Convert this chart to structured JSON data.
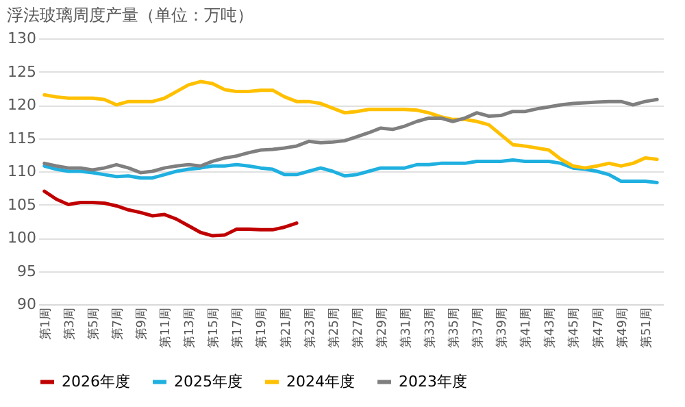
{
  "chart_data": {
    "type": "line",
    "title": "浮法玻璃周度产量（单位：万吨）",
    "categories": [
      "第1周",
      null,
      "第3周",
      null,
      "第5周",
      null,
      "第7周",
      null,
      "第9周",
      null,
      "第11周",
      null,
      "第13周",
      null,
      "第15周",
      null,
      "第17周",
      null,
      "第19周",
      null,
      "第21周",
      null,
      "第23周",
      null,
      "第25周",
      null,
      "第27周",
      null,
      "第29周",
      null,
      "第31周",
      null,
      "第33周",
      null,
      "第35周",
      null,
      "第37周",
      null,
      "第39周",
      null,
      "第41周",
      null,
      "第43周",
      null,
      "第45周",
      null,
      "第47周",
      null,
      "第49周",
      null,
      "第51周",
      null
    ],
    "series": [
      {
        "name": "2026年度",
        "color": "#c00000",
        "values": [
          107,
          105.8,
          105,
          105.3,
          105.3,
          105.2,
          104.8,
          104.2,
          103.8,
          103.3,
          103.5,
          102.8,
          101.8,
          100.8,
          100.3,
          100.4,
          101.3,
          101.3,
          101.2,
          101.2,
          101.6,
          102.2,
          null,
          null,
          null,
          null,
          null,
          null,
          null,
          null,
          null,
          null,
          null,
          null,
          null,
          null,
          null,
          null,
          null,
          null,
          null,
          null,
          null,
          null,
          null,
          null,
          null,
          null,
          null,
          null,
          null,
          null
        ]
      },
      {
        "name": "2025年度",
        "color": "#1fb0e0",
        "values": [
          110.8,
          110.3,
          110,
          110,
          109.8,
          109.5,
          109.2,
          109.3,
          109,
          109,
          109.5,
          110,
          110.3,
          110.5,
          110.8,
          110.8,
          111,
          110.8,
          110.5,
          110.3,
          109.5,
          109.5,
          110,
          110.5,
          110,
          109.3,
          109.5,
          110,
          110.5,
          110.5,
          110.5,
          111,
          111,
          111.2,
          111.2,
          111.2,
          111.5,
          111.5,
          111.5,
          111.7,
          111.5,
          111.5,
          111.5,
          111.2,
          110.5,
          110.3,
          110,
          109.5,
          108.5,
          108.5,
          108.5,
          108.3
        ]
      },
      {
        "name": "2024年度",
        "color": "#ffc000",
        "values": [
          121.5,
          121.2,
          121,
          121,
          121,
          120.8,
          120,
          120.5,
          120.5,
          120.5,
          121,
          122,
          123,
          123.5,
          123.2,
          122.3,
          122,
          122,
          122.2,
          122.2,
          121.2,
          120.5,
          120.5,
          120.2,
          119.5,
          118.8,
          119,
          119.3,
          119.3,
          119.3,
          119.3,
          119.2,
          118.8,
          118.2,
          117.8,
          117.8,
          117.5,
          117,
          115.5,
          114,
          113.8,
          113.5,
          113.2,
          111.8,
          110.8,
          110.5,
          110.8,
          111.2,
          110.8,
          111.2,
          112,
          111.8
        ]
      },
      {
        "name": "2023年度",
        "color": "#7f7f7f",
        "values": [
          111.2,
          110.8,
          110.5,
          110.5,
          110.2,
          110.5,
          111,
          110.5,
          109.8,
          110,
          110.5,
          110.8,
          111,
          110.8,
          111.5,
          112,
          112.3,
          112.8,
          113.2,
          113.3,
          113.5,
          113.8,
          114.5,
          114.3,
          114.4,
          114.6,
          115.2,
          115.8,
          116.5,
          116.3,
          116.8,
          117.5,
          118,
          118,
          117.5,
          118,
          118.8,
          118.3,
          118.4,
          119,
          119,
          119.4,
          119.7,
          120,
          120.2,
          120.3,
          120.4,
          120.5,
          120.5,
          120,
          120.5,
          120.8
        ]
      }
    ],
    "ylim": [
      90,
      130
    ],
    "yticks": [
      90,
      95,
      100,
      105,
      110,
      115,
      120,
      125,
      130
    ],
    "grid": "y",
    "legend": "bottom"
  }
}
